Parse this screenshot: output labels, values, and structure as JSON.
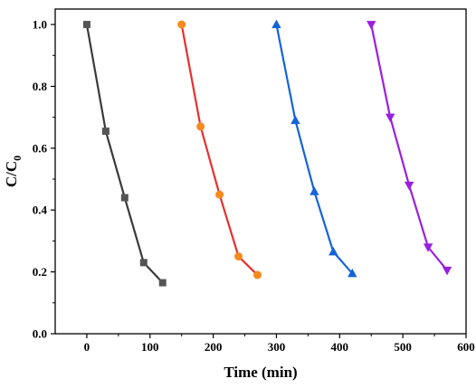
{
  "chart_data": {
    "type": "line",
    "title": "",
    "xlabel": "Time (min)",
    "ylabel_main": "C/C",
    "ylabel_sub": "0",
    "xlim": [
      -50,
      600
    ],
    "ylim": [
      0,
      1.05
    ],
    "x_ticks": [
      0,
      100,
      200,
      300,
      400,
      500,
      600
    ],
    "x_tick_labels": [
      "0",
      "100",
      "200",
      "300",
      "400",
      "500",
      "600"
    ],
    "y_ticks": [
      0.0,
      0.2,
      0.4,
      0.6,
      0.8,
      1.0
    ],
    "y_tick_labels": [
      "0.0",
      "0.2",
      "0.4",
      "0.6",
      "0.8",
      "1.0"
    ],
    "grid": false,
    "legend": "none",
    "series": [
      {
        "color": "#3a3a3a",
        "fill": "#555555",
        "marker": "square",
        "x": [
          0,
          30,
          60,
          90,
          120
        ],
        "y": [
          1.0,
          0.655,
          0.44,
          0.23,
          0.165
        ]
      },
      {
        "color": "#e8302e",
        "fill": "#f58a1f",
        "marker": "circle",
        "x": [
          150,
          180,
          210,
          240,
          270
        ],
        "y": [
          1.0,
          0.67,
          0.45,
          0.25,
          0.19
        ]
      },
      {
        "color": "#1463d9",
        "fill": "#1463d9",
        "marker": "triangle-up",
        "x": [
          300,
          330,
          360,
          390,
          420
        ],
        "y": [
          1.0,
          0.69,
          0.46,
          0.265,
          0.195
        ]
      },
      {
        "color": "#9b1fe0",
        "fill": "#9b1fe0",
        "marker": "triangle-down",
        "x": [
          450,
          480,
          510,
          540,
          570
        ],
        "y": [
          1.0,
          0.7,
          0.48,
          0.28,
          0.205
        ]
      }
    ]
  }
}
